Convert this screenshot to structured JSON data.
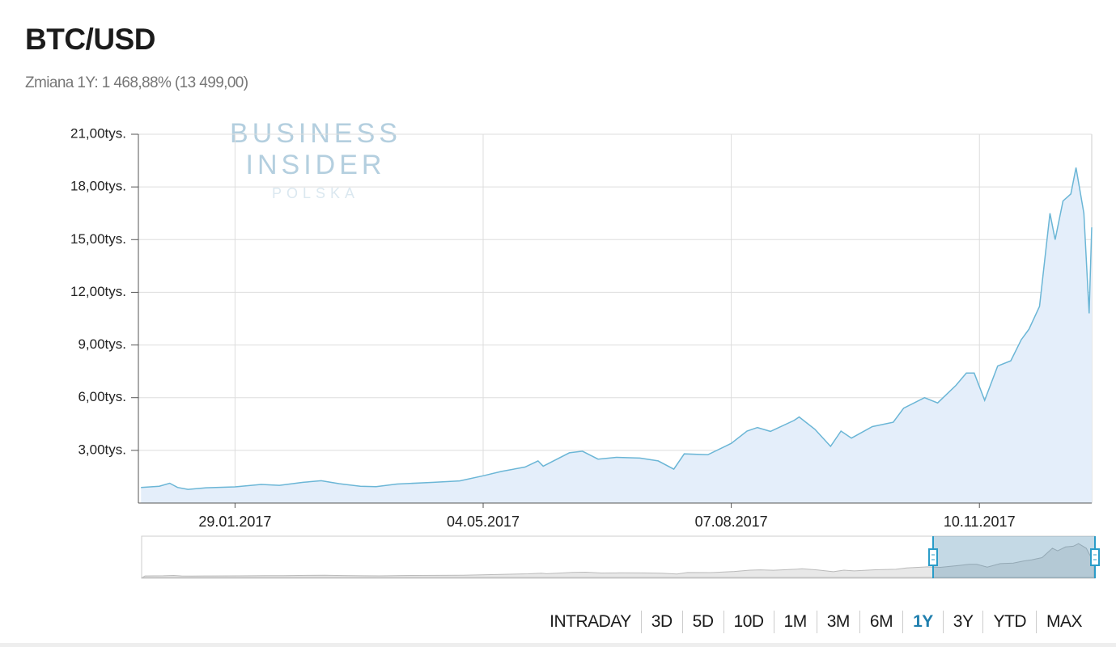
{
  "chart_data": {
    "type": "area",
    "title": "BTC/USD",
    "subtitle": "Zmiana 1Y: 1 468,88% (13 499,00)",
    "watermark": [
      "BUSINESS",
      "INSIDER",
      "POLSKA"
    ],
    "color": "#6bb6d6",
    "fill": "#e4eefa",
    "grid": true,
    "x": [
      "2016-12-24",
      "2016-12-31",
      "2017-01-04",
      "2017-01-07",
      "2017-01-11",
      "2017-01-18",
      "2017-01-29",
      "2017-02-08",
      "2017-02-15",
      "2017-02-24",
      "2017-03-03",
      "2017-03-10",
      "2017-03-18",
      "2017-03-24",
      "2017-04-01",
      "2017-04-15",
      "2017-04-25",
      "2017-05-04",
      "2017-05-11",
      "2017-05-20",
      "2017-05-25",
      "2017-05-27",
      "2017-06-06",
      "2017-06-11",
      "2017-06-17",
      "2017-06-24",
      "2017-07-03",
      "2017-07-10",
      "2017-07-16",
      "2017-07-20",
      "2017-07-29",
      "2017-08-07",
      "2017-08-13",
      "2017-08-17",
      "2017-08-22",
      "2017-08-31",
      "2017-09-02",
      "2017-09-08",
      "2017-09-14",
      "2017-09-18",
      "2017-09-22",
      "2017-09-30",
      "2017-10-08",
      "2017-10-12",
      "2017-10-20",
      "2017-10-25",
      "2017-11-01",
      "2017-11-05",
      "2017-11-08",
      "2017-11-12",
      "2017-11-17",
      "2017-11-22",
      "2017-11-26",
      "2017-11-29",
      "2017-12-03",
      "2017-12-07",
      "2017-12-09",
      "2017-12-12",
      "2017-12-15",
      "2017-12-17",
      "2017-12-20",
      "2017-12-22",
      "2017-12-23"
    ],
    "values": [
      890,
      960,
      1130,
      890,
      780,
      870,
      920,
      1060,
      1010,
      1180,
      1270,
      1100,
      960,
      930,
      1080,
      1180,
      1260,
      1550,
      1800,
      2050,
      2400,
      2100,
      2860,
      2950,
      2500,
      2600,
      2560,
      2400,
      1930,
      2800,
      2750,
      3400,
      4100,
      4300,
      4080,
      4700,
      4900,
      4200,
      3230,
      4100,
      3700,
      4350,
      4600,
      5400,
      6000,
      5700,
      6700,
      7400,
      7400,
      5850,
      7800,
      8100,
      9300,
      9900,
      11200,
      16500,
      15000,
      17200,
      17600,
      19100,
      16500,
      10800,
      15700
    ],
    "xlim": [
      "2016-12-23",
      "2017-12-23"
    ],
    "xticks": [
      {
        "value": "2017-01-29",
        "label": "29.01.2017"
      },
      {
        "value": "2017-05-04",
        "label": "04.05.2017"
      },
      {
        "value": "2017-08-07",
        "label": "07.08.2017"
      },
      {
        "value": "2017-11-10",
        "label": "10.11.2017"
      }
    ],
    "ylim": [
      0,
      21000
    ],
    "yticks": [
      {
        "value": 3000,
        "label": "3,00tys."
      },
      {
        "value": 6000,
        "label": "6,00tys."
      },
      {
        "value": 9000,
        "label": "9,00tys."
      },
      {
        "value": 12000,
        "label": "12,00tys."
      },
      {
        "value": 15000,
        "label": "15,00tys."
      },
      {
        "value": 18000,
        "label": "18,00tys."
      },
      {
        "value": 21000,
        "label": "21,00tys."
      }
    ],
    "range_buttons": [
      {
        "label": "INTRADAY"
      },
      {
        "label": "3D"
      },
      {
        "label": "5D"
      },
      {
        "label": "10D"
      },
      {
        "label": "1M"
      },
      {
        "label": "3M"
      },
      {
        "label": "6M"
      },
      {
        "label": "1Y",
        "active": true
      },
      {
        "label": "3Y"
      },
      {
        "label": "YTD"
      },
      {
        "label": "MAX"
      }
    ]
  }
}
